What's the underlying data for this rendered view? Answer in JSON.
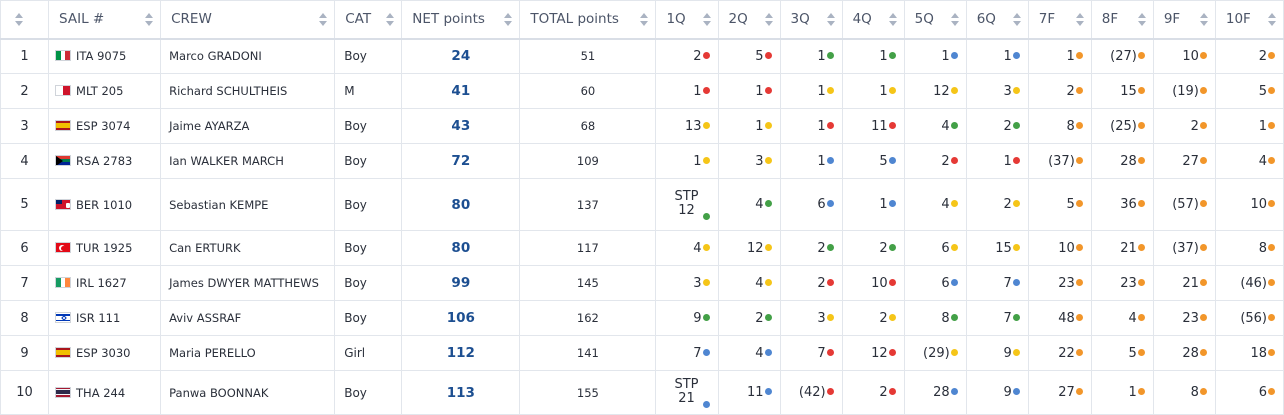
{
  "headers": [
    "",
    "SAIL #",
    "CREW",
    "CAT",
    "NET points",
    "TOTAL points",
    "1Q",
    "2Q",
    "3Q",
    "4Q",
    "5Q",
    "6Q",
    "7F",
    "8F",
    "9F",
    "10F"
  ],
  "colors": {
    "red": "#e53935",
    "green": "#43a047",
    "blue": "#4f86d1",
    "yellow": "#f5c518",
    "orange": "#f2962a",
    "net_text": "#1d4f91"
  },
  "rows": [
    {
      "rank": "1",
      "flag": "ITA",
      "sail": "ITA 9075",
      "crew": "Marco GRADONI",
      "cat": "Boy",
      "net": "24",
      "total": "51",
      "races": [
        {
          "v": "2",
          "c": "red"
        },
        {
          "v": "5",
          "c": "red"
        },
        {
          "v": "1",
          "c": "green"
        },
        {
          "v": "1",
          "c": "green"
        },
        {
          "v": "1",
          "c": "blue"
        },
        {
          "v": "1",
          "c": "blue"
        },
        {
          "v": "1",
          "c": "orange"
        },
        {
          "v": "(27)",
          "c": "orange"
        },
        {
          "v": "10",
          "c": "orange"
        },
        {
          "v": "2",
          "c": "orange"
        }
      ]
    },
    {
      "rank": "2",
      "flag": "MLT",
      "sail": "MLT 205",
      "crew": "Richard SCHULTHEIS",
      "cat": "M",
      "net": "41",
      "total": "60",
      "races": [
        {
          "v": "1",
          "c": "red"
        },
        {
          "v": "1",
          "c": "red"
        },
        {
          "v": "1",
          "c": "yellow"
        },
        {
          "v": "1",
          "c": "yellow"
        },
        {
          "v": "12",
          "c": "yellow"
        },
        {
          "v": "3",
          "c": "yellow"
        },
        {
          "v": "2",
          "c": "orange"
        },
        {
          "v": "15",
          "c": "orange"
        },
        {
          "v": "(19)",
          "c": "orange"
        },
        {
          "v": "5",
          "c": "orange"
        }
      ]
    },
    {
      "rank": "3",
      "flag": "ESP",
      "sail": "ESP 3074",
      "crew": "Jaime AYARZA",
      "cat": "Boy",
      "net": "43",
      "total": "68",
      "races": [
        {
          "v": "13",
          "c": "yellow"
        },
        {
          "v": "1",
          "c": "yellow"
        },
        {
          "v": "1",
          "c": "red"
        },
        {
          "v": "11",
          "c": "red"
        },
        {
          "v": "4",
          "c": "green"
        },
        {
          "v": "2",
          "c": "green"
        },
        {
          "v": "8",
          "c": "orange"
        },
        {
          "v": "(25)",
          "c": "orange"
        },
        {
          "v": "2",
          "c": "orange"
        },
        {
          "v": "1",
          "c": "orange"
        }
      ]
    },
    {
      "rank": "4",
      "flag": "RSA",
      "sail": "RSA 2783",
      "crew": "Ian WALKER MARCH",
      "cat": "Boy",
      "net": "72",
      "total": "109",
      "races": [
        {
          "v": "1",
          "c": "yellow"
        },
        {
          "v": "3",
          "c": "yellow"
        },
        {
          "v": "1",
          "c": "blue"
        },
        {
          "v": "5",
          "c": "blue"
        },
        {
          "v": "2",
          "c": "red"
        },
        {
          "v": "1",
          "c": "red"
        },
        {
          "v": "(37)",
          "c": "orange"
        },
        {
          "v": "28",
          "c": "orange"
        },
        {
          "v": "27",
          "c": "orange"
        },
        {
          "v": "4",
          "c": "orange"
        }
      ]
    },
    {
      "rank": "5",
      "flag": "BER",
      "sail": "BER 1010",
      "crew": "Sebastian KEMPE",
      "cat": "Boy",
      "net": "80",
      "total": "137",
      "races": [
        {
          "v": "STP 12",
          "c": "green",
          "stp": true
        },
        {
          "v": "4",
          "c": "green"
        },
        {
          "v": "6",
          "c": "blue"
        },
        {
          "v": "1",
          "c": "blue"
        },
        {
          "v": "4",
          "c": "yellow"
        },
        {
          "v": "2",
          "c": "yellow"
        },
        {
          "v": "5",
          "c": "orange"
        },
        {
          "v": "36",
          "c": "orange"
        },
        {
          "v": "(57)",
          "c": "orange"
        },
        {
          "v": "10",
          "c": "orange"
        }
      ]
    },
    {
      "rank": "6",
      "flag": "TUR",
      "sail": "TUR 1925",
      "crew": "Can ERTURK",
      "cat": "Boy",
      "net": "80",
      "total": "117",
      "races": [
        {
          "v": "4",
          "c": "yellow"
        },
        {
          "v": "12",
          "c": "yellow"
        },
        {
          "v": "2",
          "c": "green"
        },
        {
          "v": "2",
          "c": "green"
        },
        {
          "v": "6",
          "c": "yellow"
        },
        {
          "v": "15",
          "c": "yellow"
        },
        {
          "v": "10",
          "c": "orange"
        },
        {
          "v": "21",
          "c": "orange"
        },
        {
          "v": "(37)",
          "c": "orange"
        },
        {
          "v": "8",
          "c": "orange"
        }
      ]
    },
    {
      "rank": "7",
      "flag": "IRL",
      "sail": "IRL 1627",
      "crew": "James DWYER MATTHEWS",
      "cat": "Boy",
      "net": "99",
      "total": "145",
      "races": [
        {
          "v": "3",
          "c": "yellow"
        },
        {
          "v": "4",
          "c": "yellow"
        },
        {
          "v": "2",
          "c": "red"
        },
        {
          "v": "10",
          "c": "red"
        },
        {
          "v": "6",
          "c": "blue"
        },
        {
          "v": "7",
          "c": "blue"
        },
        {
          "v": "23",
          "c": "orange"
        },
        {
          "v": "23",
          "c": "orange"
        },
        {
          "v": "21",
          "c": "orange"
        },
        {
          "v": "(46)",
          "c": "orange"
        }
      ]
    },
    {
      "rank": "8",
      "flag": "ISR",
      "sail": "ISR 111",
      "crew": "Aviv ASSRAF",
      "cat": "Boy",
      "net": "106",
      "total": "162",
      "races": [
        {
          "v": "9",
          "c": "green"
        },
        {
          "v": "2",
          "c": "green"
        },
        {
          "v": "3",
          "c": "yellow"
        },
        {
          "v": "2",
          "c": "yellow"
        },
        {
          "v": "8",
          "c": "green"
        },
        {
          "v": "7",
          "c": "green"
        },
        {
          "v": "48",
          "c": "orange"
        },
        {
          "v": "4",
          "c": "orange"
        },
        {
          "v": "23",
          "c": "orange"
        },
        {
          "v": "(56)",
          "c": "orange"
        }
      ]
    },
    {
      "rank": "9",
      "flag": "ESP",
      "sail": "ESP 3030",
      "crew": "Maria PERELLO",
      "cat": "Girl",
      "net": "112",
      "total": "141",
      "races": [
        {
          "v": "7",
          "c": "blue"
        },
        {
          "v": "4",
          "c": "blue"
        },
        {
          "v": "7",
          "c": "red"
        },
        {
          "v": "12",
          "c": "red"
        },
        {
          "v": "(29)",
          "c": "yellow"
        },
        {
          "v": "9",
          "c": "yellow"
        },
        {
          "v": "22",
          "c": "orange"
        },
        {
          "v": "5",
          "c": "orange"
        },
        {
          "v": "28",
          "c": "orange"
        },
        {
          "v": "18",
          "c": "orange"
        }
      ]
    },
    {
      "rank": "10",
      "flag": "THA",
      "sail": "THA 244",
      "crew": "Panwa BOONNAK",
      "cat": "Boy",
      "net": "113",
      "total": "155",
      "races": [
        {
          "v": "STP 21",
          "c": "blue",
          "stp": true
        },
        {
          "v": "11",
          "c": "blue"
        },
        {
          "v": "(42)",
          "c": "red"
        },
        {
          "v": "2",
          "c": "red"
        },
        {
          "v": "28",
          "c": "blue"
        },
        {
          "v": "9",
          "c": "blue"
        },
        {
          "v": "27",
          "c": "orange"
        },
        {
          "v": "1",
          "c": "orange"
        },
        {
          "v": "8",
          "c": "orange"
        },
        {
          "v": "6",
          "c": "orange"
        }
      ]
    }
  ]
}
